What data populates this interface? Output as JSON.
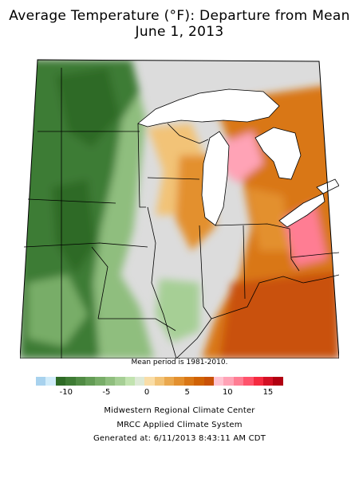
{
  "title": {
    "line1": "Average Temperature (°F): Departure from Mean",
    "line2": "June 1, 2013"
  },
  "mean_period_note": "Mean period is 1981-2010.",
  "legend": {
    "colors": [
      "#a8d2ee",
      "#d1ecfa",
      "#2e6b26",
      "#3e7b34",
      "#508b44",
      "#639c55",
      "#78ad68",
      "#8fbe7e",
      "#a6cf95",
      "#c2e3b0",
      "#dde9d6",
      "#f9dda7",
      "#f2c377",
      "#eaa84e",
      "#e3902f",
      "#d97716",
      "#d06205",
      "#c95107",
      "#ffc4d2",
      "#ffa3b6",
      "#ff7d93",
      "#ff536c",
      "#f52a3f",
      "#d31024",
      "#b10011"
    ],
    "ticks": [
      {
        "label": "-10",
        "value": -10
      },
      {
        "label": "-5",
        "value": -5
      },
      {
        "label": "0",
        "value": 0
      },
      {
        "label": "5",
        "value": 5
      },
      {
        "label": "10",
        "value": 10
      },
      {
        "label": "15",
        "value": 15
      }
    ],
    "range": [
      -12,
      15
    ]
  },
  "credits": {
    "line1": "Midwestern Regional Climate Center",
    "line2": "MRCC Applied Climate System",
    "line3": "Generated at: 6/11/2013 8:43:11 AM CDT"
  }
}
